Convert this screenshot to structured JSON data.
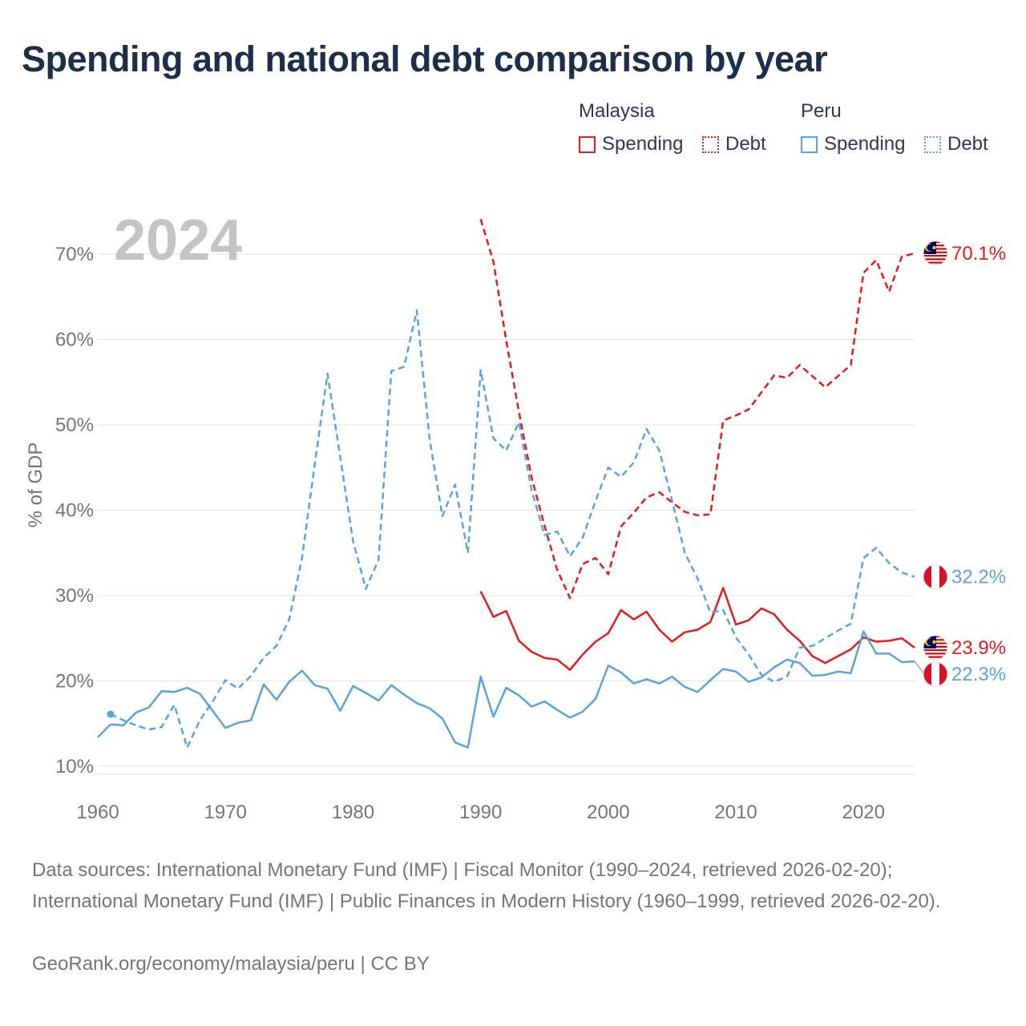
{
  "title": "Spending and national debt comparison by year",
  "legend": {
    "groups": [
      {
        "name": "Malaysia",
        "color": "#e41a1c",
        "items": [
          "Spending",
          "Debt"
        ]
      },
      {
        "name": "Peru",
        "color": "#5aa2e0",
        "items": [
          "Spending",
          "Debt"
        ]
      }
    ]
  },
  "year_watermark": "2024",
  "footer": {
    "sources": "Data sources: International Monetary Fund (IMF) | Fiscal Monitor (1990–2024, retrieved 2026-02-20); International Monetary Fund (IMF) | Public Finances in Modern History (1960–1999, retrieved 2026-02-20).",
    "credit": "GeoRank.org/economy/malaysia/peru | CC BY"
  },
  "chart_data": {
    "type": "line",
    "title": "Spending and national debt comparison by year",
    "xlabel": "",
    "ylabel": "% of GDP",
    "xlim": [
      1960,
      2024
    ],
    "ylim": [
      10,
      70
    ],
    "x_ticks": [
      1960,
      1970,
      1980,
      1990,
      2000,
      2010,
      2020
    ],
    "y_ticks": [
      10,
      20,
      30,
      40,
      50,
      60,
      70
    ],
    "y_tick_labels": [
      "10%",
      "20%",
      "30%",
      "40%",
      "50%",
      "60%",
      "70%"
    ],
    "grid": true,
    "series": [
      {
        "name": "Malaysia Spending",
        "country": "Malaysia",
        "style": "solid",
        "color": "#e41a1c",
        "end_label": "23.9%",
        "x": [
          1990,
          1991,
          1992,
          1993,
          1994,
          1995,
          1996,
          1997,
          1998,
          1999,
          2000,
          2001,
          2002,
          2003,
          2004,
          2005,
          2006,
          2007,
          2008,
          2009,
          2010,
          2011,
          2012,
          2013,
          2014,
          2015,
          2016,
          2017,
          2018,
          2019,
          2020,
          2021,
          2022,
          2023,
          2024
        ],
        "values": [
          30.5,
          27.5,
          28.2,
          24.7,
          23.4,
          22.7,
          22.5,
          21.3,
          23.1,
          24.6,
          25.6,
          28.3,
          27.2,
          28.1,
          26.0,
          24.6,
          25.7,
          26.0,
          26.9,
          30.9,
          26.6,
          27.1,
          28.5,
          27.8,
          26.0,
          24.7,
          22.9,
          22.1,
          22.9,
          23.7,
          25.1,
          24.6,
          24.7,
          25.0,
          23.9
        ]
      },
      {
        "name": "Malaysia Debt",
        "country": "Malaysia",
        "style": "dashed",
        "color": "#e41a1c",
        "end_label": "70.1%",
        "x": [
          1990,
          1991,
          1992,
          1993,
          1994,
          1995,
          1996,
          1997,
          1998,
          1999,
          2000,
          2001,
          2002,
          2003,
          2004,
          2005,
          2006,
          2007,
          2008,
          2009,
          2010,
          2011,
          2012,
          2013,
          2014,
          2015,
          2016,
          2017,
          2018,
          2019,
          2020,
          2021,
          2022,
          2023,
          2024
        ],
        "values": [
          74.1,
          69.1,
          59.9,
          51.5,
          43.8,
          38.2,
          33.0,
          29.7,
          33.7,
          34.4,
          32.5,
          38.1,
          39.7,
          41.5,
          42.1,
          40.9,
          39.8,
          39.4,
          39.5,
          50.5,
          51.1,
          51.8,
          53.8,
          55.8,
          55.5,
          57.0,
          55.7,
          54.4,
          55.7,
          57.0,
          67.8,
          69.3,
          65.6,
          69.7,
          70.1
        ]
      },
      {
        "name": "Peru Spending",
        "country": "Peru",
        "style": "solid",
        "color": "#5aa2e0",
        "end_label": "22.3%",
        "x": [
          1960,
          1961,
          1962,
          1963,
          1964,
          1965,
          1966,
          1967,
          1968,
          1969,
          1970,
          1971,
          1972,
          1973,
          1974,
          1975,
          1976,
          1977,
          1978,
          1979,
          1980,
          1981,
          1982,
          1983,
          1984,
          1985,
          1986,
          1987,
          1988,
          1989,
          1990,
          1991,
          1992,
          1993,
          1994,
          1995,
          1996,
          1997,
          1998,
          1999,
          2000,
          2001,
          2002,
          2003,
          2004,
          2005,
          2006,
          2007,
          2008,
          2009,
          2010,
          2011,
          2012,
          2013,
          2014,
          2015,
          2016,
          2017,
          2018,
          2019,
          2020,
          2021,
          2022,
          2023,
          2024
        ],
        "values": [
          13.4,
          14.9,
          14.8,
          16.3,
          16.9,
          18.8,
          18.7,
          19.2,
          18.5,
          16.5,
          14.5,
          15.1,
          15.4,
          19.6,
          17.8,
          19.9,
          21.2,
          19.5,
          19.1,
          16.5,
          19.4,
          18.6,
          17.7,
          19.5,
          18.4,
          17.4,
          16.8,
          15.6,
          12.8,
          12.2,
          20.5,
          15.8,
          19.2,
          18.3,
          17.0,
          17.6,
          16.6,
          15.7,
          16.4,
          17.9,
          21.8,
          21.0,
          19.7,
          20.2,
          19.7,
          20.5,
          19.3,
          18.7,
          20.1,
          21.4,
          21.1,
          19.9,
          20.4,
          21.6,
          22.5,
          22.1,
          20.6,
          20.7,
          21.1,
          20.9,
          25.8,
          23.2,
          23.2,
          22.2,
          22.3
        ]
      },
      {
        "name": "Peru Debt",
        "country": "Peru",
        "style": "dashed",
        "color": "#5aa2e0",
        "end_label": "32.2%",
        "x": [
          1961,
          1962,
          1963,
          1964,
          1965,
          1966,
          1967,
          1968,
          1969,
          1970,
          1971,
          1972,
          1973,
          1974,
          1975,
          1976,
          1977,
          1978,
          1979,
          1980,
          1981,
          1982,
          1983,
          1984,
          1985,
          1986,
          1987,
          1988,
          1989,
          1990,
          1991,
          1992,
          1993,
          1994,
          1995,
          1996,
          1997,
          1998,
          1999,
          2000,
          2001,
          2002,
          2003,
          2004,
          2005,
          2006,
          2007,
          2008,
          2009,
          2010,
          2011,
          2012,
          2013,
          2014,
          2015,
          2016,
          2017,
          2018,
          2019,
          2020,
          2021,
          2022,
          2023,
          2024
        ],
        "values": [
          16.1,
          15.4,
          14.8,
          14.3,
          14.6,
          17.2,
          12.2,
          15.4,
          17.6,
          20.1,
          19.1,
          20.6,
          22.7,
          24.1,
          27.2,
          34.4,
          45.4,
          56.0,
          46.2,
          36.4,
          30.8,
          34.2,
          56.3,
          56.8,
          63.4,
          48.3,
          39.3,
          43.0,
          35.0,
          56.4,
          48.4,
          47.0,
          50.3,
          42.3,
          37.1,
          37.5,
          34.6,
          36.8,
          41.1,
          45.0,
          43.9,
          45.6,
          49.5,
          47.0,
          41.1,
          35.0,
          32.0,
          28.0,
          28.3,
          25.1,
          23.1,
          20.7,
          19.9,
          20.5,
          23.9,
          24.1,
          25.0,
          25.9,
          26.7,
          34.4,
          35.6,
          33.8,
          32.7,
          32.2
        ]
      }
    ]
  }
}
